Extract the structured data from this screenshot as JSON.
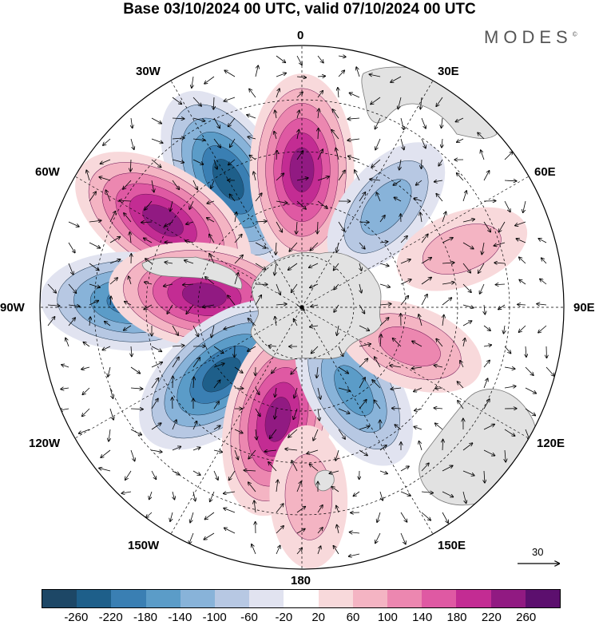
{
  "title": "Base 03/10/2024 00 UTC, valid 07/10/2024 00 UTC",
  "brand": "MODES",
  "brand_mark": "©",
  "longitude_labels": {
    "lon_0": "0",
    "lon_30e": "30E",
    "lon_60e": "60E",
    "lon_90e": "90E",
    "lon_120e": "120E",
    "lon_150e": "150E",
    "lon_180": "180",
    "lon_150w": "150W",
    "lon_120w": "120W",
    "lon_90w": "90W",
    "lon_60w": "60W",
    "lon_30w": "30W"
  },
  "reference_vector": {
    "label": "30",
    "value": 30
  },
  "colorbar": {
    "ticks": [
      "-260",
      "-220",
      "-180",
      "-140",
      "-100",
      "-60",
      "-20",
      "20",
      "60",
      "100",
      "140",
      "180",
      "220",
      "260"
    ],
    "colors": [
      "#1d4766",
      "#1e5f8a",
      "#3a7fb3",
      "#5b9cc8",
      "#88b3d9",
      "#b7c8e3",
      "#e1e3f0",
      "#ffffff",
      "#f8d9db",
      "#f4b4c3",
      "#ec87b0",
      "#df59a3",
      "#c32c93",
      "#911a82",
      "#5c0f6e"
    ]
  },
  "map": {
    "projection": "south polar stereographic",
    "field": "geopotential height anomaly with wind vectors",
    "continent_color": "#e2e2e2",
    "anomaly_centers": [
      {
        "name": "blob-30w-negative",
        "value": -240,
        "lon": -30,
        "lat": -45
      },
      {
        "name": "blob-0-positive",
        "value": 230,
        "lon": 0,
        "lat": -48
      },
      {
        "name": "blob-60w-positive",
        "value": 240,
        "lon": -58,
        "lat": -40
      },
      {
        "name": "blob-90w-negative",
        "value": -200,
        "lon": -88,
        "lat": -38
      },
      {
        "name": "blob-90w-positive",
        "value": 230,
        "lon": -83,
        "lat": -60
      },
      {
        "name": "blob-130w-negative",
        "value": -240,
        "lon": -130,
        "lat": -58
      },
      {
        "name": "blob-165w-positive",
        "value": 240,
        "lon": -168,
        "lat": -55
      },
      {
        "name": "blob-150e-negative",
        "value": -160,
        "lon": 148,
        "lat": -60
      },
      {
        "name": "blob-110e-positive",
        "value": 110,
        "lon": 110,
        "lat": -55
      },
      {
        "name": "blob-40e-negative",
        "value": -120,
        "lon": 40,
        "lat": -50
      },
      {
        "name": "blob-70e-positive",
        "value": 70,
        "lon": 70,
        "lat": -38
      },
      {
        "name": "blob-180-positive",
        "value": 90,
        "lon": 178,
        "lat": -32
      }
    ]
  }
}
